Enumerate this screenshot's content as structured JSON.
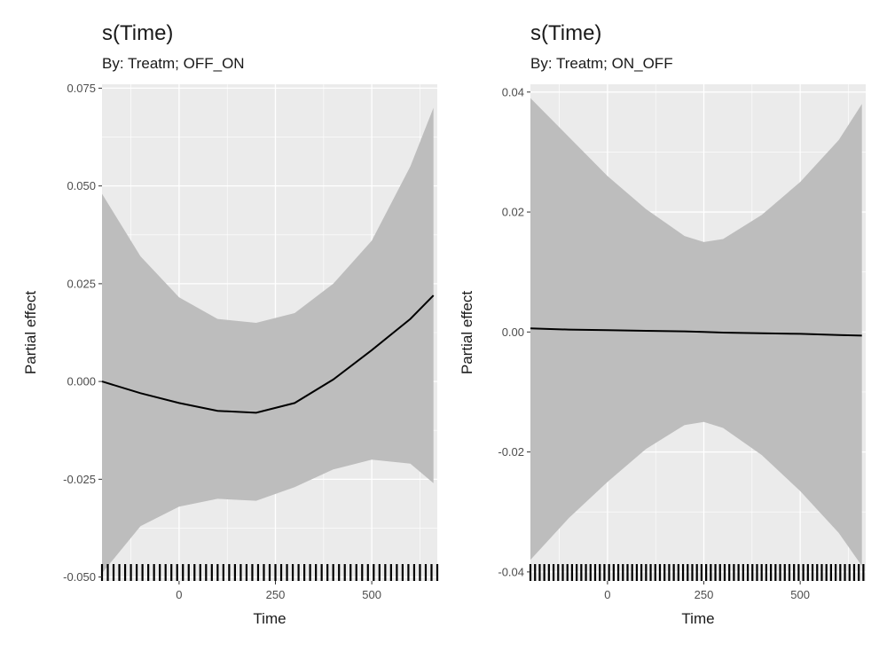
{
  "chart_data": [
    {
      "type": "line",
      "title": "s(Time)",
      "subtitle": "By: Treatm; OFF_ON",
      "xlabel": "Time",
      "ylabel": "Partial effect",
      "xlim": [
        -200,
        670
      ],
      "ylim": [
        -0.051,
        0.076
      ],
      "xticks": [
        0,
        250,
        500
      ],
      "xtick_labels": [
        "0",
        "250",
        "500"
      ],
      "yticks": [
        -0.05,
        -0.025,
        0.0,
        0.025,
        0.05,
        0.075
      ],
      "ytick_labels": [
        "-0.050",
        "-0.025",
        "0.000",
        "0.025",
        "0.050",
        "0.075"
      ],
      "grid": true,
      "series": [
        {
          "x": [
            -200,
            -100,
            0,
            100,
            200,
            300,
            400,
            500,
            600,
            660
          ],
          "y": [
            0.0,
            -0.003,
            -0.0055,
            -0.0075,
            -0.008,
            -0.0055,
            0.0005,
            0.008,
            0.016,
            0.022
          ],
          "lower": [
            -0.049,
            -0.037,
            -0.032,
            -0.03,
            -0.0305,
            -0.027,
            -0.0225,
            -0.02,
            -0.021,
            -0.026
          ],
          "upper": [
            0.048,
            0.032,
            0.0215,
            0.016,
            0.015,
            0.0175,
            0.025,
            0.036,
            0.055,
            0.07
          ]
        }
      ],
      "rug_x": [
        -200,
        -185,
        -170,
        -155,
        -140,
        -125,
        -110,
        -95,
        -80,
        -65,
        -50,
        -35,
        -20,
        -5,
        10,
        25,
        40,
        55,
        70,
        85,
        100,
        115,
        130,
        145,
        160,
        175,
        190,
        205,
        220,
        235,
        250,
        265,
        280,
        295,
        310,
        325,
        340,
        355,
        370,
        385,
        400,
        415,
        430,
        445,
        460,
        475,
        490,
        505,
        520,
        535,
        550,
        565,
        580,
        595,
        610,
        625,
        640,
        655,
        670
      ]
    },
    {
      "type": "line",
      "title": "s(Time)",
      "subtitle": "By: Treatm; ON_OFF",
      "xlabel": "Time",
      "ylabel": "Partial effect",
      "xlim": [
        -200,
        670
      ],
      "ylim": [
        -0.0415,
        0.0413
      ],
      "xticks": [
        0,
        250,
        500
      ],
      "xtick_labels": [
        "0",
        "250",
        "500"
      ],
      "yticks": [
        -0.04,
        -0.02,
        0.0,
        0.02,
        0.04
      ],
      "ytick_labels": [
        "-0.04",
        "-0.02",
        "0.00",
        "0.02",
        "0.04"
      ],
      "grid": true,
      "series": [
        {
          "x": [
            -200,
            -100,
            0,
            100,
            200,
            250,
            300,
            400,
            500,
            600,
            660
          ],
          "y": [
            0.0006,
            0.0004,
            0.0003,
            0.0002,
            0.0001,
            0.0,
            -0.0001,
            -0.0002,
            -0.0003,
            -0.0005,
            -0.0006
          ],
          "lower": [
            -0.038,
            -0.031,
            -0.025,
            -0.0195,
            -0.0155,
            -0.015,
            -0.016,
            -0.0205,
            -0.0265,
            -0.0335,
            -0.039
          ],
          "upper": [
            0.039,
            0.0325,
            0.026,
            0.0205,
            0.016,
            0.015,
            0.0155,
            0.0195,
            0.025,
            0.032,
            0.038
          ]
        }
      ],
      "rug_x": [
        -200,
        -188,
        -176,
        -164,
        -152,
        -140,
        -128,
        -116,
        -104,
        -92,
        -80,
        -68,
        -56,
        -44,
        -32,
        -20,
        -8,
        4,
        16,
        28,
        40,
        52,
        64,
        76,
        88,
        100,
        112,
        124,
        136,
        148,
        160,
        172,
        184,
        196,
        208,
        220,
        232,
        244,
        256,
        268,
        280,
        292,
        304,
        316,
        328,
        340,
        352,
        364,
        376,
        388,
        400,
        412,
        424,
        436,
        448,
        460,
        472,
        484,
        496,
        508,
        520,
        532,
        544,
        556,
        568,
        580,
        592,
        604,
        616,
        628,
        640,
        652,
        664
      ]
    }
  ]
}
